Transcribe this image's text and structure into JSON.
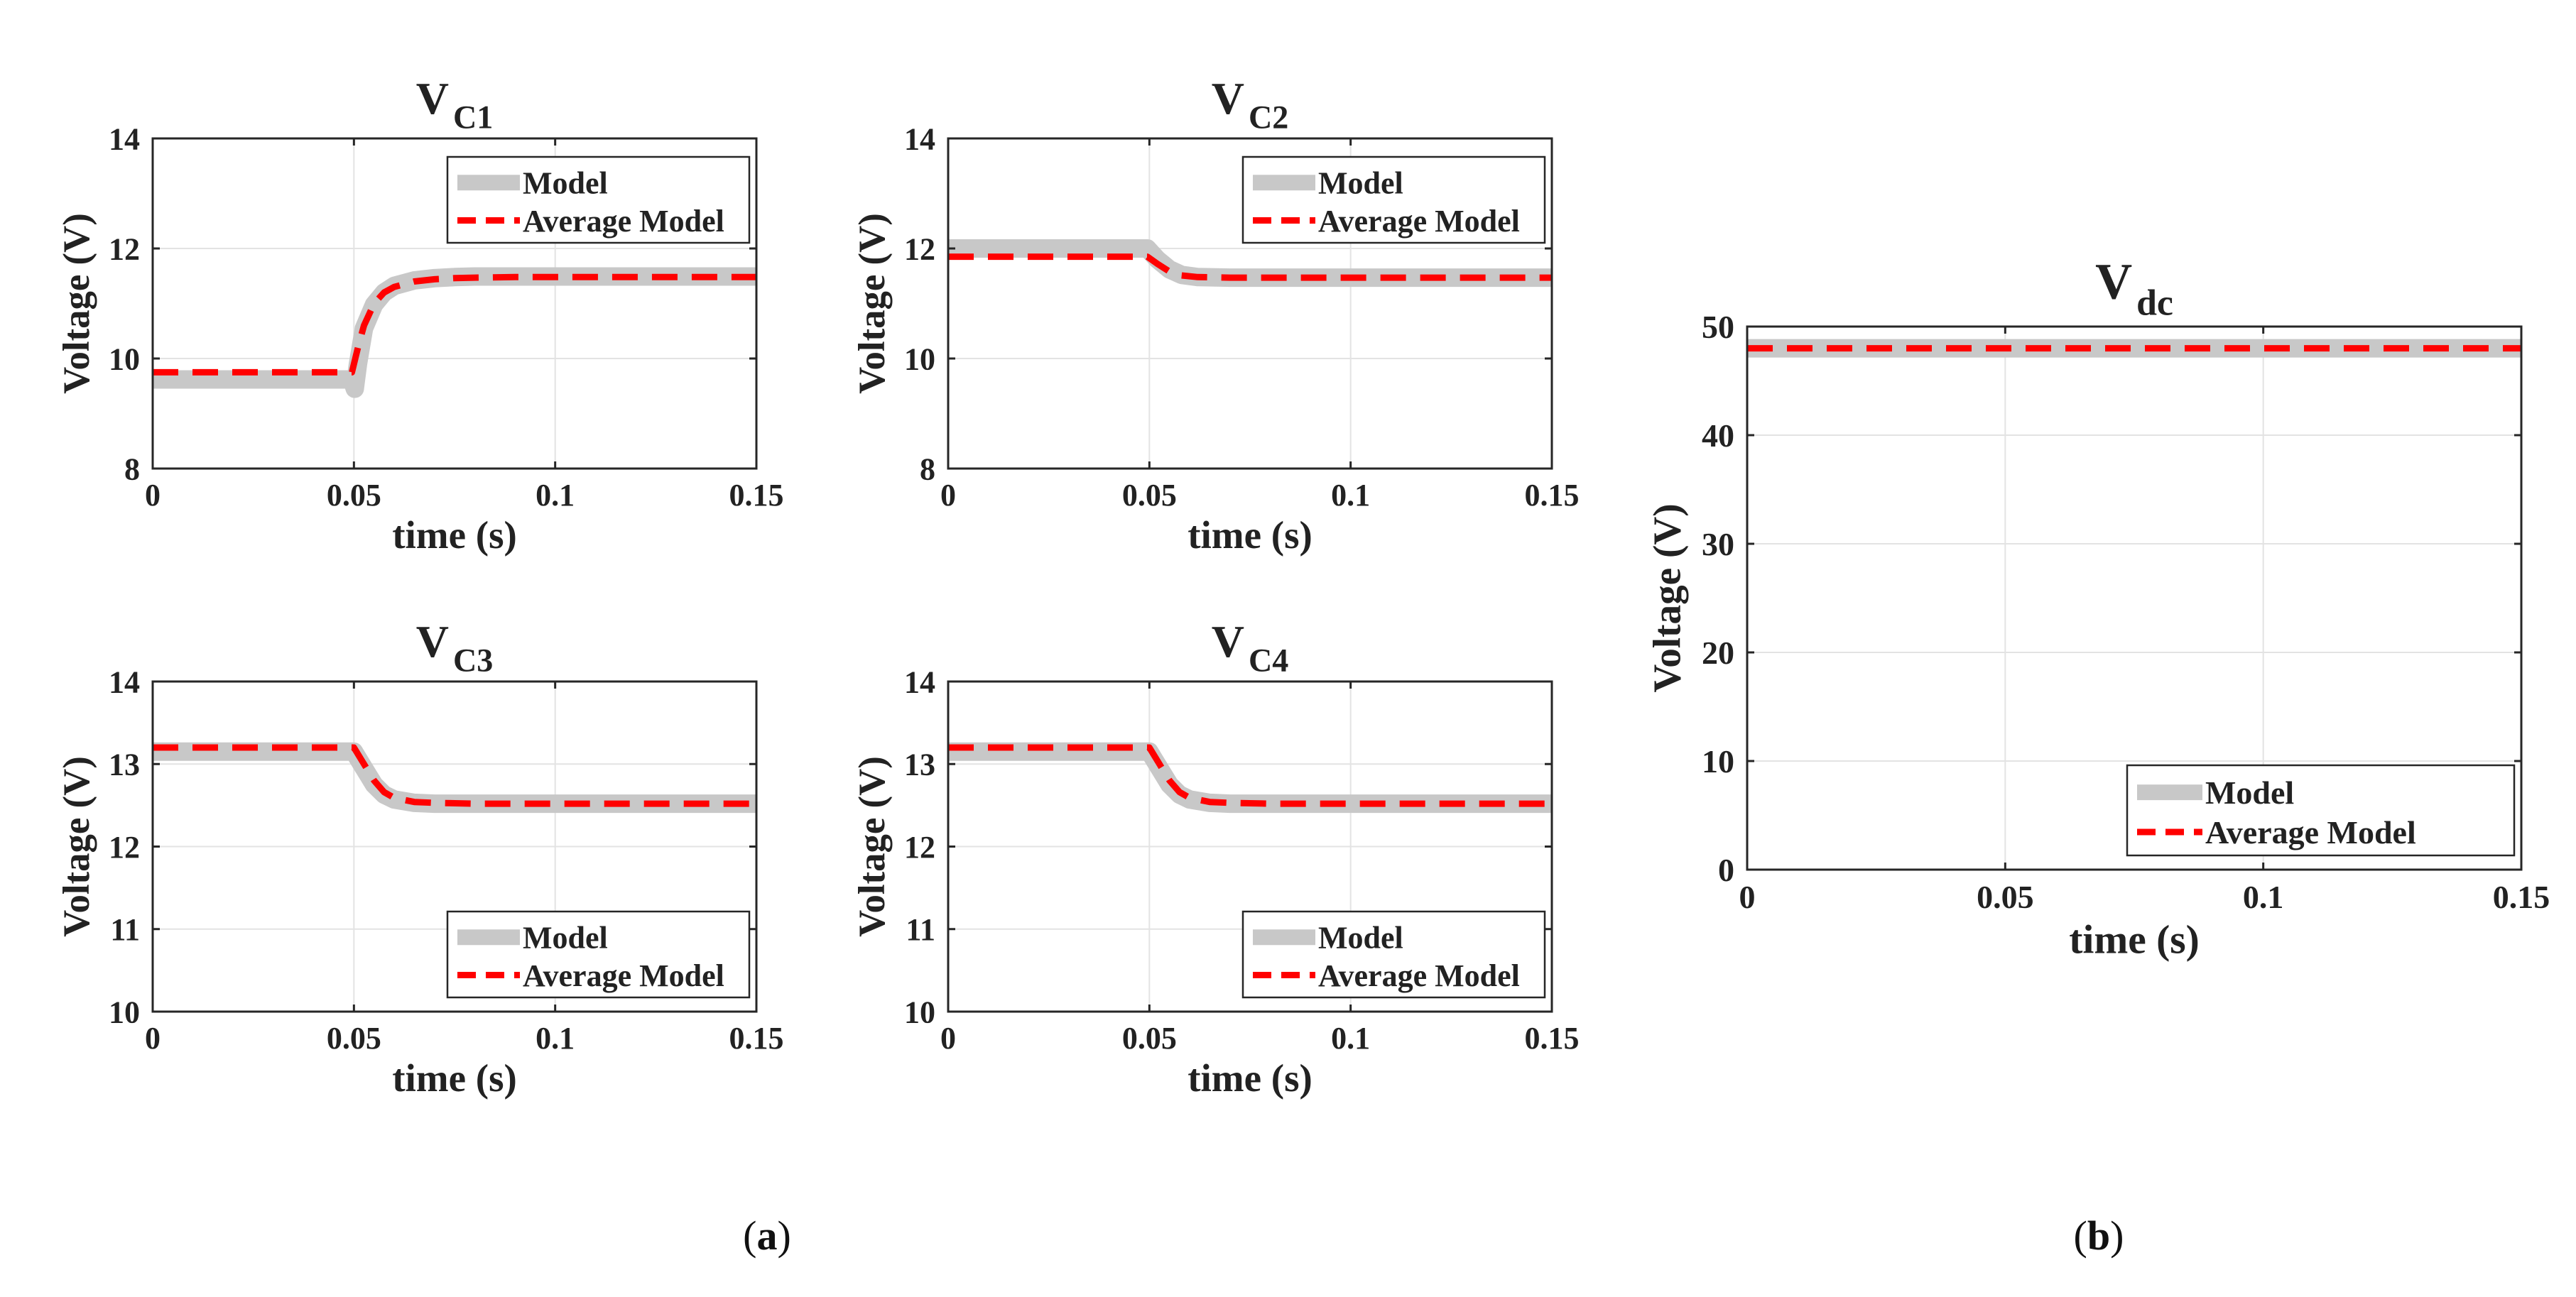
{
  "figure": {
    "panel_captions": [
      {
        "open": "(",
        "letter": "a",
        "close": ")"
      },
      {
        "open": "(",
        "letter": "b",
        "close": ")"
      }
    ]
  },
  "colors": {
    "model": "#c8c8c8",
    "average": "#ff0000",
    "grid": "#e3e3e3",
    "axes": "#262626"
  },
  "chart_data": [
    {
      "id": "vc1",
      "type": "line",
      "title": "V",
      "title_sub": "C1",
      "xlabel": "time (s)",
      "ylabel": "Voltage (V)",
      "xlim": [
        0,
        0.15
      ],
      "ylim": [
        8,
        14
      ],
      "xticks": [
        0,
        0.05,
        0.1,
        0.15
      ],
      "xtick_labels": [
        "0",
        "0.05",
        "0.1",
        "0.15"
      ],
      "yticks": [
        8,
        10,
        12,
        14
      ],
      "ytick_labels": [
        "8",
        "10",
        "12",
        "14"
      ],
      "grid": true,
      "legend_position": "top-right",
      "series": [
        {
          "name": "Model",
          "style": "solid-thick",
          "x": [
            0,
            0.0495,
            0.0502,
            0.051,
            0.0525,
            0.055,
            0.0575,
            0.06,
            0.065,
            0.07,
            0.075,
            0.08,
            0.09,
            0.1,
            0.15
          ],
          "y": [
            9.62,
            9.62,
            9.45,
            9.9,
            10.55,
            10.98,
            11.2,
            11.32,
            11.42,
            11.46,
            11.48,
            11.49,
            11.49,
            11.49,
            11.49
          ]
        },
        {
          "name": "Average Model",
          "style": "dashed",
          "x": [
            0,
            0.0495,
            0.051,
            0.0525,
            0.055,
            0.0575,
            0.06,
            0.065,
            0.07,
            0.075,
            0.08,
            0.09,
            0.1,
            0.15
          ],
          "y": [
            9.75,
            9.75,
            10.2,
            10.6,
            11.0,
            11.2,
            11.3,
            11.4,
            11.44,
            11.46,
            11.47,
            11.48,
            11.48,
            11.48
          ]
        }
      ]
    },
    {
      "id": "vc2",
      "type": "line",
      "title": "V",
      "title_sub": "C2",
      "xlabel": "time (s)",
      "ylabel": "Voltage (V)",
      "xlim": [
        0,
        0.15
      ],
      "ylim": [
        8,
        14
      ],
      "xticks": [
        0,
        0.05,
        0.1,
        0.15
      ],
      "xtick_labels": [
        "0",
        "0.05",
        "0.1",
        "0.15"
      ],
      "yticks": [
        8,
        10,
        12,
        14
      ],
      "ytick_labels": [
        "8",
        "10",
        "12",
        "14"
      ],
      "grid": true,
      "legend_position": "top-right",
      "series": [
        {
          "name": "Model",
          "style": "solid-thick",
          "x": [
            0,
            0.0495,
            0.052,
            0.055,
            0.058,
            0.062,
            0.07,
            0.08,
            0.1,
            0.15
          ],
          "y": [
            12.0,
            12.0,
            11.8,
            11.62,
            11.52,
            11.48,
            11.47,
            11.47,
            11.47,
            11.47
          ]
        },
        {
          "name": "Average Model",
          "style": "dashed",
          "x": [
            0,
            0.0495,
            0.052,
            0.055,
            0.058,
            0.062,
            0.07,
            0.08,
            0.1,
            0.15
          ],
          "y": [
            11.85,
            11.85,
            11.72,
            11.58,
            11.51,
            11.48,
            11.47,
            11.47,
            11.47,
            11.47
          ]
        }
      ]
    },
    {
      "id": "vc3",
      "type": "line",
      "title": "V",
      "title_sub": "C3",
      "xlabel": "time (s)",
      "ylabel": "Voltage (V)",
      "xlim": [
        0,
        0.15
      ],
      "ylim": [
        10,
        14
      ],
      "xticks": [
        0,
        0.05,
        0.1,
        0.15
      ],
      "xtick_labels": [
        "0",
        "0.05",
        "0.1",
        "0.15"
      ],
      "yticks": [
        10,
        11,
        12,
        13,
        14
      ],
      "ytick_labels": [
        "10",
        "11",
        "12",
        "13",
        "14"
      ],
      "grid": true,
      "legend_position": "bottom-right",
      "series": [
        {
          "name": "Model",
          "style": "solid-thick",
          "x": [
            0,
            0.05,
            0.0525,
            0.055,
            0.0575,
            0.06,
            0.065,
            0.07,
            0.08,
            0.1,
            0.15
          ],
          "y": [
            13.15,
            13.15,
            12.95,
            12.75,
            12.63,
            12.57,
            12.53,
            12.52,
            12.52,
            12.52,
            12.52
          ]
        },
        {
          "name": "Average Model",
          "style": "dashed",
          "x": [
            0,
            0.05,
            0.0525,
            0.055,
            0.0575,
            0.06,
            0.065,
            0.07,
            0.08,
            0.1,
            0.15
          ],
          "y": [
            13.2,
            13.2,
            13.0,
            12.8,
            12.66,
            12.59,
            12.54,
            12.53,
            12.52,
            12.52,
            12.52
          ]
        }
      ]
    },
    {
      "id": "vc4",
      "type": "line",
      "title": "V",
      "title_sub": "C4",
      "xlabel": "time (s)",
      "ylabel": "Voltage (V)",
      "xlim": [
        0,
        0.15
      ],
      "ylim": [
        10,
        14
      ],
      "xticks": [
        0,
        0.05,
        0.1,
        0.15
      ],
      "xtick_labels": [
        "0",
        "0.05",
        "0.1",
        "0.15"
      ],
      "yticks": [
        10,
        11,
        12,
        13,
        14
      ],
      "ytick_labels": [
        "10",
        "11",
        "12",
        "13",
        "14"
      ],
      "grid": true,
      "legend_position": "bottom-right",
      "series": [
        {
          "name": "Model",
          "style": "solid-thick",
          "x": [
            0,
            0.05,
            0.0525,
            0.055,
            0.0575,
            0.06,
            0.065,
            0.07,
            0.08,
            0.1,
            0.15
          ],
          "y": [
            13.15,
            13.15,
            12.95,
            12.75,
            12.63,
            12.57,
            12.53,
            12.52,
            12.52,
            12.52,
            12.52
          ]
        },
        {
          "name": "Average Model",
          "style": "dashed",
          "x": [
            0,
            0.05,
            0.0525,
            0.055,
            0.0575,
            0.06,
            0.065,
            0.07,
            0.08,
            0.1,
            0.15
          ],
          "y": [
            13.2,
            13.2,
            13.0,
            12.8,
            12.66,
            12.59,
            12.54,
            12.53,
            12.52,
            12.52,
            12.52
          ]
        }
      ]
    },
    {
      "id": "vdc",
      "type": "line",
      "title": "V",
      "title_sub": "dc",
      "xlabel": "time (s)",
      "ylabel": "Voltage (V)",
      "xlim": [
        0,
        0.15
      ],
      "ylim": [
        0,
        50
      ],
      "xticks": [
        0,
        0.05,
        0.1,
        0.15
      ],
      "xtick_labels": [
        "0",
        "0.05",
        "0.1",
        "0.15"
      ],
      "yticks": [
        0,
        10,
        20,
        30,
        40,
        50
      ],
      "ytick_labels": [
        "0",
        "10",
        "20",
        "30",
        "40",
        "50"
      ],
      "grid": true,
      "legend_position": "bottom-right",
      "series": [
        {
          "name": "Model",
          "style": "solid-thick",
          "x": [
            0,
            0.15
          ],
          "y": [
            48,
            48
          ]
        },
        {
          "name": "Average Model",
          "style": "dashed",
          "x": [
            0,
            0.15
          ],
          "y": [
            48,
            48
          ]
        }
      ]
    }
  ]
}
